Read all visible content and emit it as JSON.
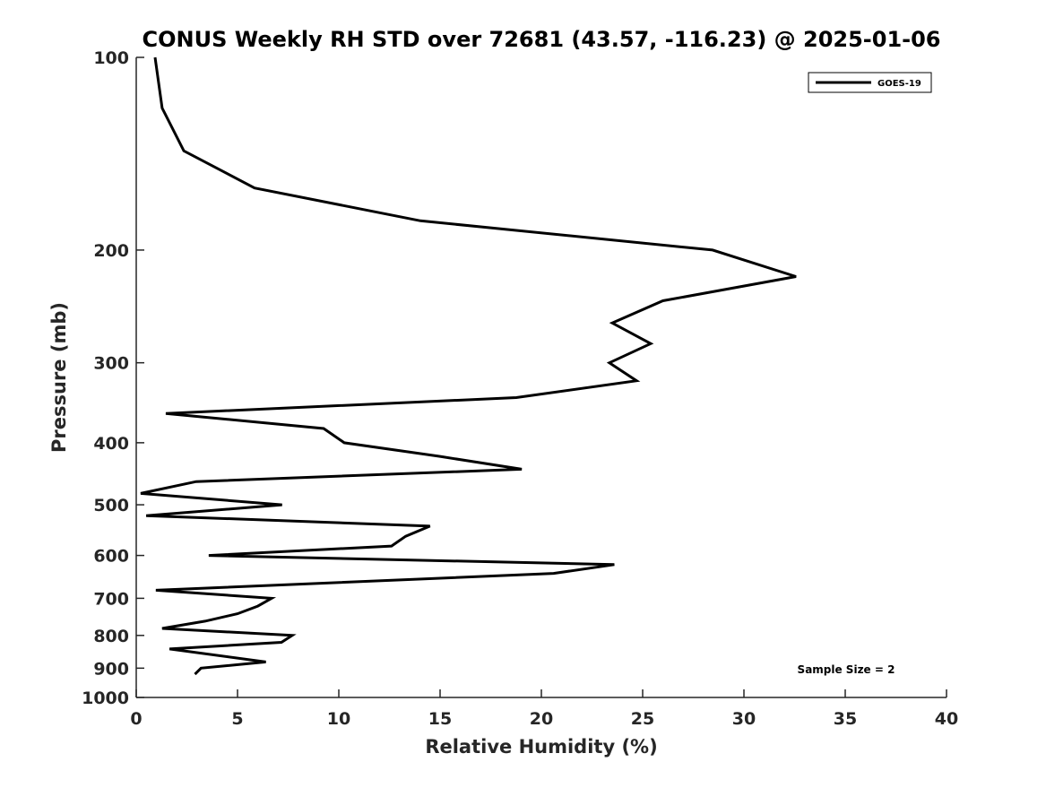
{
  "chart_data": {
    "type": "line",
    "title": "CONUS Weekly RH STD over 72681 (43.57, -116.23) @ 2025-01-06",
    "xlabel": "Relative Humidity (%)",
    "ylabel": "Pressure (mb)",
    "xlim": [
      0,
      40
    ],
    "ylim": [
      100,
      1000
    ],
    "yscale": "log",
    "y_reversed": true,
    "xticks": [
      0,
      5,
      10,
      15,
      20,
      25,
      30,
      35,
      40
    ],
    "yticks": [
      100,
      200,
      300,
      400,
      500,
      600,
      700,
      800,
      900,
      1000
    ],
    "grid": false,
    "legend": {
      "position": "top-right",
      "entries": [
        "GOES-19"
      ]
    },
    "annotation": "Sample Size = 2",
    "series": [
      {
        "name": "GOES-19",
        "color": "#000000",
        "x": [
          0.93,
          1.28,
          2.35,
          5.84,
          14.03,
          28.45,
          32.57,
          26.0,
          23.5,
          25.4,
          23.36,
          24.7,
          18.76,
          1.46,
          9.25,
          10.27,
          14.96,
          19.03,
          2.96,
          0.22,
          7.2,
          0.49,
          14.5,
          13.3,
          12.6,
          3.58,
          23.6,
          20.6,
          0.97,
          6.68,
          6.0,
          5.0,
          3.4,
          1.28,
          7.7,
          7.17,
          1.64,
          6.4,
          3.2,
          2.9
        ],
        "y": [
          100,
          120,
          140,
          160,
          180,
          200,
          220,
          240,
          260,
          280,
          300,
          320,
          340,
          360,
          380,
          400,
          420,
          440,
          460,
          480,
          500,
          520,
          540,
          560,
          580,
          600,
          620,
          640,
          680,
          700,
          720,
          740,
          760,
          780,
          800,
          820,
          840,
          880,
          900,
          920
        ]
      }
    ]
  }
}
